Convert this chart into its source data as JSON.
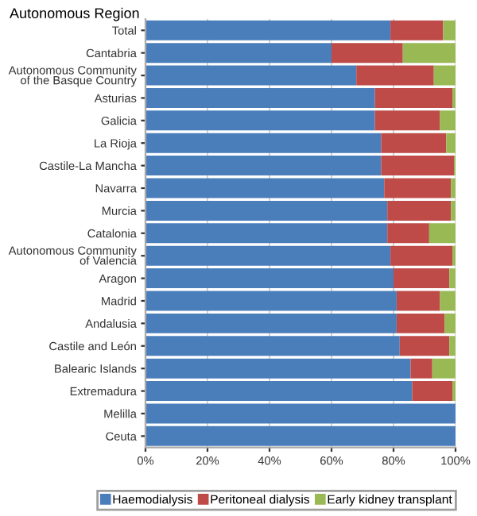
{
  "chart_data": {
    "type": "bar",
    "orientation": "horizontal",
    "stacked": true,
    "ylabel": "Autonomous Region",
    "categories": [
      "Total",
      "Cantabria",
      "Autonomous Community\nof the Basque Country",
      "Asturias",
      "Galicia",
      "La Rioja",
      "Castile-La Mancha",
      "Navarra",
      "Murcia",
      "Catalonia",
      "Autonomous Community\nof Valencia",
      "Aragon",
      "Madrid",
      "Andalusia",
      "Castile and León",
      "Balearic Islands",
      "Extremadura",
      "Melilla",
      "Ceuta"
    ],
    "series": [
      {
        "name": "Haemodialysis",
        "color": "#4a7ebb",
        "values": [
          79,
          60,
          68,
          74,
          74,
          76,
          76,
          77,
          78,
          78,
          79,
          80,
          81,
          81,
          82,
          85.5,
          86,
          100,
          100
        ]
      },
      {
        "name": "Peritoneal dialysis",
        "color": "#be4b48",
        "values": [
          17,
          23,
          25,
          25,
          21,
          21,
          23.5,
          21.5,
          20.5,
          13.5,
          20,
          18,
          14,
          15.5,
          16,
          7,
          13,
          0,
          0
        ]
      },
      {
        "name": "Early kidney transplant",
        "color": "#98b954",
        "values": [
          4,
          17,
          7,
          1,
          5,
          3,
          0.5,
          1.5,
          1.5,
          8.5,
          1,
          2,
          5,
          3.5,
          2,
          7.5,
          1,
          0,
          0
        ]
      }
    ],
    "xlim": [
      0,
      100
    ],
    "xticks": [
      {
        "value": 0,
        "label": "0%"
      },
      {
        "value": 20,
        "label": "20%"
      },
      {
        "value": 40,
        "label": "40%"
      },
      {
        "value": 60,
        "label": "60%"
      },
      {
        "value": 80,
        "label": "80%"
      },
      {
        "value": 100,
        "label": "100%"
      }
    ],
    "grid": "x",
    "legend": "bottom"
  }
}
